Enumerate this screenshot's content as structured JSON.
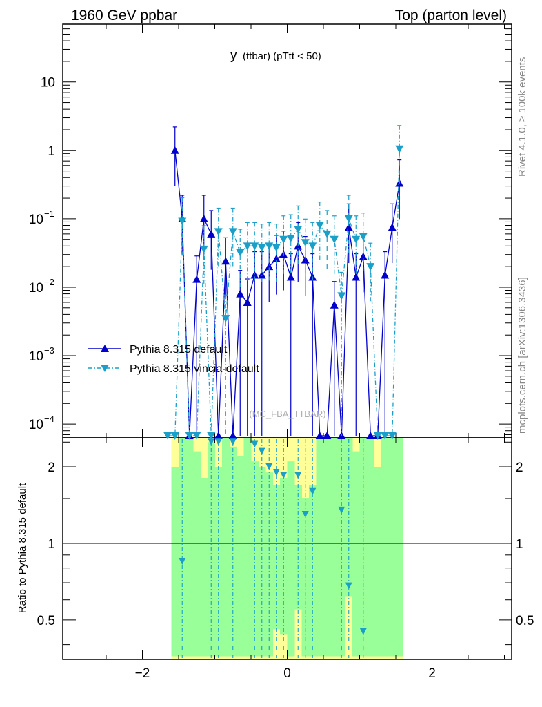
{
  "header": {
    "left_title": "1960 GeV ppbar",
    "right_title": "Top (parton level)"
  },
  "side_labels": {
    "rivet": "Rivet 4.1.0, ≥ 100k events",
    "mcplots": "mcplots.cern.ch [arXiv:1306.3436]"
  },
  "chart_data": {
    "type": "line",
    "title_main": "y",
    "title_sub": "(ttbar)  (pTtt < 50)",
    "watermark": "(MC_FBA_TTBAR)",
    "xlim": [
      -3.1,
      3.1
    ],
    "x_ticks": [
      -2,
      0,
      2
    ],
    "x_tick_labels": [
      "−2",
      "0",
      "2"
    ],
    "upper": {
      "yscale": "log",
      "ylim": [
        6.3e-05,
        70
      ],
      "y_ticks": [
        0.0001,
        0.001,
        0.01,
        0.1,
        1,
        10
      ],
      "y_tick_labels": [
        {
          "base": "10",
          "exp": "−4"
        },
        {
          "base": "10",
          "exp": "−3"
        },
        {
          "base": "10",
          "exp": "−2"
        },
        {
          "base": "10",
          "exp": "−1"
        },
        {
          "base": "1",
          "exp": ""
        },
        {
          "base": "10",
          "exp": ""
        }
      ]
    },
    "lower": {
      "ylabel": "Ratio to Pythia 8.315 default",
      "yscale": "log",
      "ylim": [
        0.35,
        2.6
      ],
      "y_ticks": [
        0.5,
        1,
        2
      ],
      "y_tick_labels": [
        "0.5",
        "1",
        "2"
      ],
      "band_x": [
        -1.6,
        1.6
      ]
    },
    "legend": [
      {
        "name": "Pythia 8.315 default",
        "color": "#0000cc",
        "marker": "triangle-up",
        "style": "solid"
      },
      {
        "name": "Pythia 8.315 vincia-default",
        "color": "#1a9fc9",
        "marker": "triangle-down",
        "style": "dashdot"
      }
    ],
    "series": [
      {
        "name": "Pythia 8.315 default",
        "x": [
          -1.55,
          -1.45,
          -1.35,
          -1.25,
          -1.15,
          -1.05,
          -0.95,
          -0.85,
          -0.75,
          -0.65,
          -0.55,
          -0.45,
          -0.35,
          -0.25,
          -0.15,
          -0.05,
          0.05,
          0.15,
          0.25,
          0.35,
          0.45,
          0.55,
          0.65,
          0.75,
          0.85,
          0.95,
          1.05,
          1.15,
          1.25,
          1.35,
          1.45,
          1.55
        ],
        "y": [
          1.0,
          0.1,
          0,
          0.013,
          0.1,
          0.06,
          0,
          0.024,
          0,
          0.008,
          0.006,
          0.015,
          0.015,
          0.02,
          0.026,
          0.03,
          0.014,
          0.04,
          0.025,
          0.014,
          0,
          0,
          0.0055,
          0,
          0.075,
          0.014,
          0.028,
          0,
          0,
          0.015,
          0.075,
          0.33
        ]
      },
      {
        "name": "Pythia 8.315 vincia-default",
        "x": [
          -1.65,
          -1.55,
          -1.45,
          -1.35,
          -1.25,
          -1.15,
          -1.05,
          -0.95,
          -0.85,
          -0.75,
          -0.65,
          -0.55,
          -0.45,
          -0.35,
          -0.25,
          -0.15,
          -0.05,
          0.05,
          0.15,
          0.25,
          0.35,
          0.45,
          0.55,
          0.65,
          0.75,
          0.85,
          0.95,
          1.05,
          1.15,
          1.25,
          1.35,
          1.45,
          1.55
        ],
        "y": [
          0,
          0,
          0.092,
          0,
          0,
          0.036,
          0,
          0.065,
          0.0035,
          0.065,
          0.032,
          0.04,
          0.04,
          0.038,
          0.04,
          0.038,
          0.05,
          0.052,
          0.07,
          0.045,
          0.04,
          0.08,
          0.06,
          0.05,
          0.0075,
          0.1,
          0.05,
          0.055,
          0.02,
          0,
          0,
          0,
          1.05
        ]
      }
    ],
    "ratio_points": {
      "x": [
        -1.45,
        -1.05,
        -0.95,
        -0.75,
        -0.45,
        -0.35,
        -0.25,
        -0.15,
        -0.05,
        0.15,
        0.25,
        0.35,
        0.75,
        0.85,
        1.05
      ],
      "y": [
        0.85,
        2.5,
        2.5,
        2.5,
        2.45,
        2.3,
        2.0,
        1.9,
        1.85,
        1.85,
        1.3,
        1.6,
        1.35,
        0.68,
        0.45
      ]
    }
  }
}
